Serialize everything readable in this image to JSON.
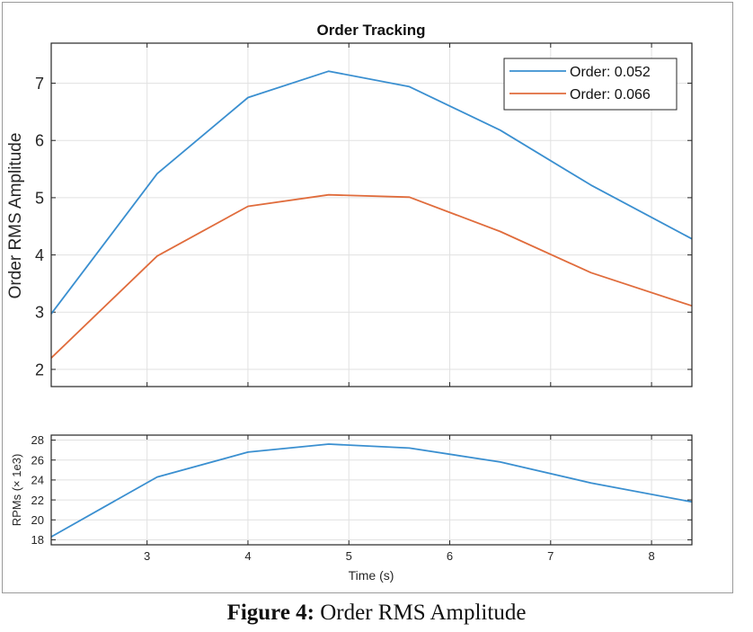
{
  "caption": {
    "label": "Figure 4:",
    "text": "Order RMS Amplitude"
  },
  "chart_data": [
    {
      "type": "line",
      "title": "Order Tracking",
      "xlabel": "",
      "ylabel": "Order RMS Amplitude",
      "xlim": [
        2.05,
        8.4
      ],
      "ylim": [
        1.7,
        7.7
      ],
      "xticks": [
        3,
        4,
        5,
        6,
        7,
        8
      ],
      "yticks": [
        2,
        3,
        4,
        5,
        6,
        7
      ],
      "grid": true,
      "legend": "top-right",
      "x": [
        2.05,
        3.1,
        4.0,
        4.8,
        5.6,
        6.5,
        7.4,
        8.4
      ],
      "series": [
        {
          "name": "Order: 0.052",
          "color": "#3a8fd0",
          "values": [
            2.97,
            5.42,
            6.75,
            7.21,
            6.94,
            6.18,
            5.22,
            4.28
          ]
        },
        {
          "name": "Order: 0.066",
          "color": "#e06c3c",
          "values": [
            2.2,
            3.98,
            4.85,
            5.05,
            5.01,
            4.41,
            3.69,
            3.11
          ]
        }
      ]
    },
    {
      "type": "line",
      "title": "",
      "xlabel": "Time (s)",
      "ylabel": "RPMs (× 1e3)",
      "xlim": [
        2.05,
        8.4
      ],
      "ylim": [
        17.5,
        28.5
      ],
      "xticks": [
        3,
        4,
        5,
        6,
        7,
        8
      ],
      "yticks": [
        18,
        20,
        22,
        24,
        26,
        28
      ],
      "grid": true,
      "x": [
        2.05,
        3.1,
        4.0,
        4.8,
        5.6,
        6.5,
        7.4,
        8.4
      ],
      "series": [
        {
          "color": "#3a8fd0",
          "values": [
            18.3,
            24.3,
            26.8,
            27.6,
            27.2,
            25.8,
            23.7,
            21.8
          ]
        }
      ]
    }
  ]
}
